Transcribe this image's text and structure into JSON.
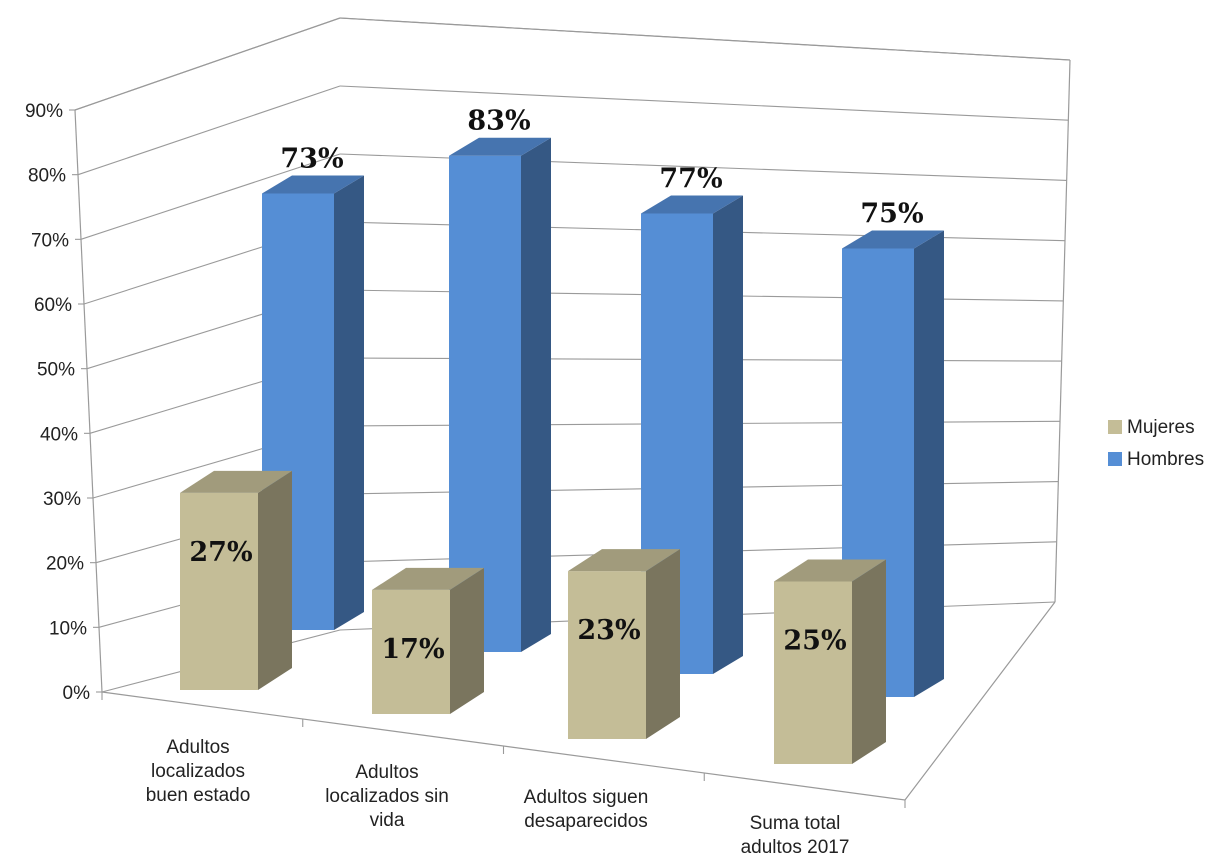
{
  "chart_data": {
    "type": "bar",
    "subtype": "3d-column",
    "title": "",
    "xlabel": "",
    "ylabel": "",
    "ylim": [
      0,
      90
    ],
    "yticks": [
      "0%",
      "10%",
      "20%",
      "30%",
      "40%",
      "50%",
      "60%",
      "70%",
      "80%",
      "90%"
    ],
    "categories": [
      [
        "Adultos",
        "localizados",
        "buen estado"
      ],
      [
        "Adultos",
        "localizados sin",
        "vida"
      ],
      [
        "Adultos siguen",
        "desaparecidos"
      ],
      [
        "Suma total",
        "adultos 2017"
      ]
    ],
    "series": [
      {
        "name": "Hombres",
        "values": [
          73,
          83,
          77,
          75
        ],
        "labels": [
          "73%",
          "83%",
          "77%",
          "75%"
        ],
        "color": "#558ED5"
      },
      {
        "name": "Mujeres",
        "values": [
          27,
          17,
          23,
          25
        ],
        "labels": [
          "27%",
          "17%",
          "23%",
          "25%"
        ],
        "color": "#C4BD97"
      }
    ],
    "legend": {
      "position": "right",
      "order": [
        "Mujeres",
        "Hombres"
      ]
    },
    "grid": true
  }
}
